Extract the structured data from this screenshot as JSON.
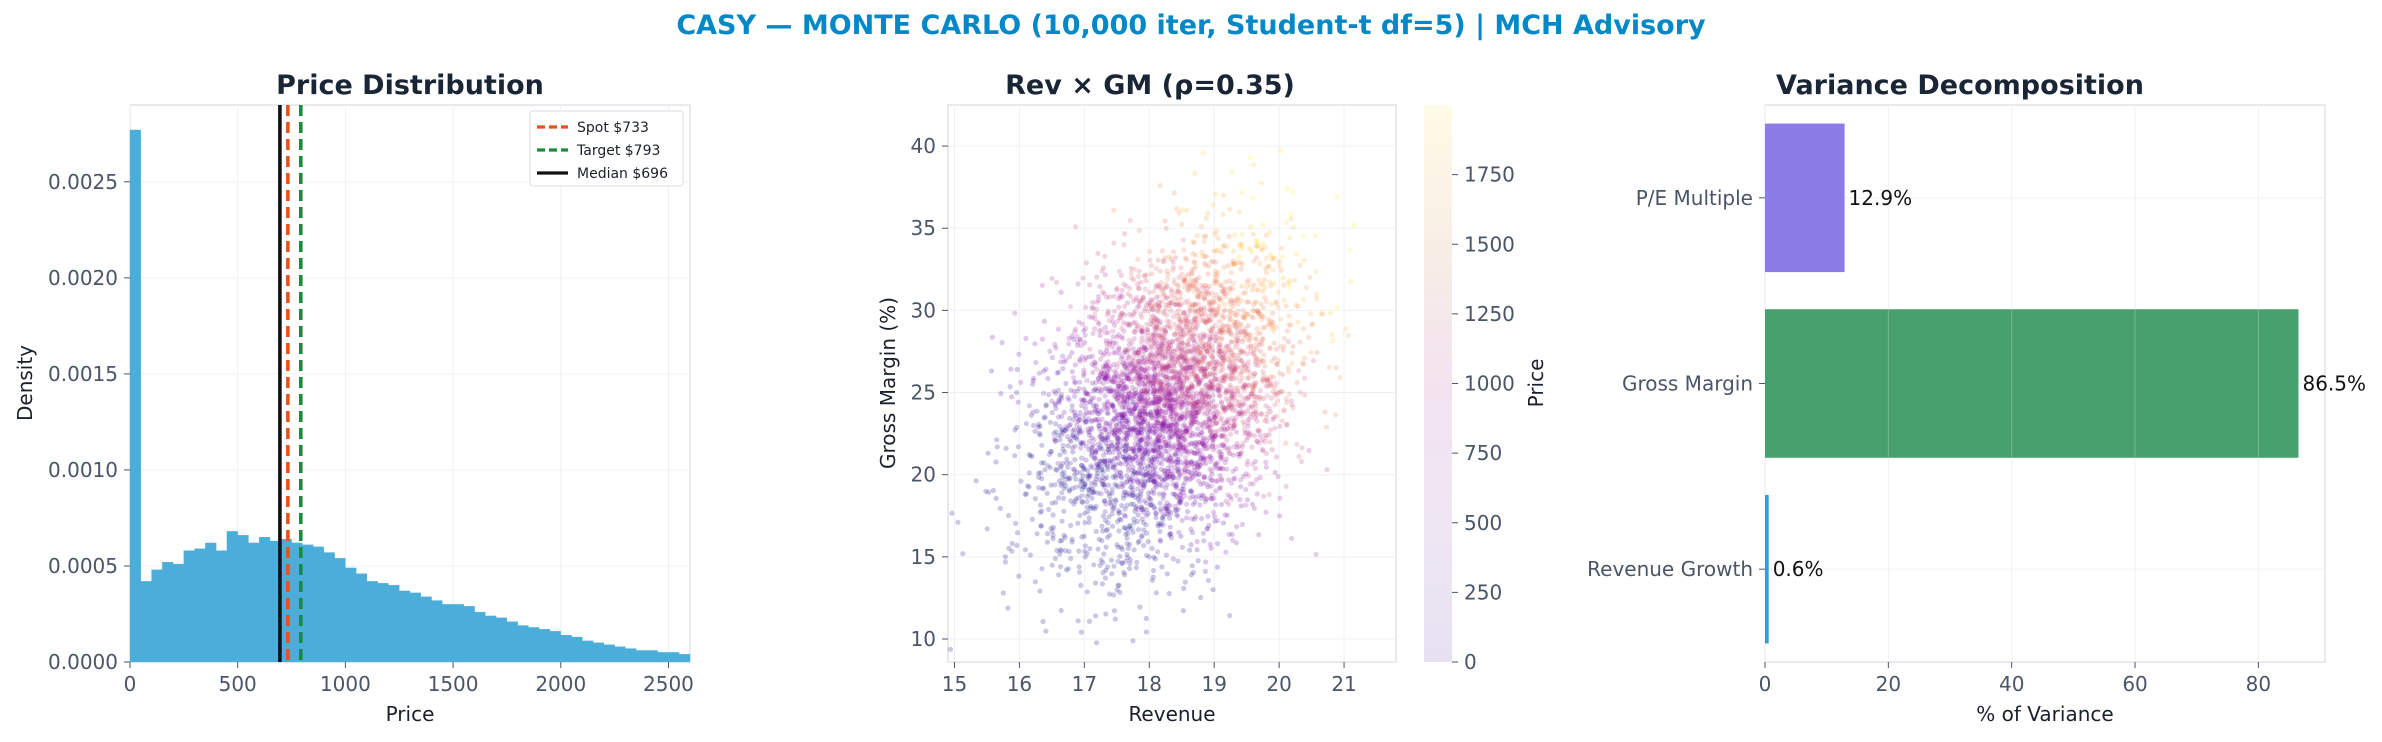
{
  "suptitle": "CASY — MONTE CARLO (10,000 iter, Student-t df=5) | MCH Advisory",
  "colors": {
    "title": "#0288c7",
    "hist": "#4badd9",
    "spot": "#e5531a",
    "target": "#1a8a3c",
    "median": "#111111",
    "pe_bar": "#8b7ce8",
    "gm_bar": "#48a06c",
    "rev_bar": "#3b9ad6"
  },
  "chart_data": [
    {
      "type": "bar",
      "title": "Price Distribution",
      "xlabel": "Price",
      "ylabel": "Density",
      "xlim": [
        0,
        2600
      ],
      "ylim": [
        0,
        0.0029
      ],
      "xticks": [
        "0",
        "500",
        "1000",
        "1500",
        "2000",
        "2500"
      ],
      "yticks": [
        "0.0000",
        "0.0005",
        "0.0010",
        "0.0015",
        "0.0020",
        "0.0025"
      ],
      "bin_width": 50,
      "bin_start": 0,
      "values": [
        0.00277,
        0.00042,
        0.00048,
        0.00052,
        0.00051,
        0.00058,
        0.00059,
        0.00062,
        0.00058,
        0.00068,
        0.00066,
        0.00062,
        0.00065,
        0.00063,
        0.00064,
        0.00062,
        0.00061,
        0.0006,
        0.00057,
        0.00054,
        0.00049,
        0.00046,
        0.00042,
        0.00041,
        0.0004,
        0.00037,
        0.00036,
        0.00034,
        0.00032,
        0.0003,
        0.0003,
        0.00029,
        0.00026,
        0.00024,
        0.00023,
        0.00021,
        0.00019,
        0.00018,
        0.00017,
        0.00016,
        0.00014,
        0.00013,
        0.00011,
        0.0001,
        9e-05,
        8e-05,
        7e-05,
        6e-05,
        6e-05,
        5e-05,
        5e-05,
        4e-05
      ],
      "lines": [
        {
          "name": "Spot $733",
          "x": 733,
          "style": "dashed",
          "color": "#e5531a"
        },
        {
          "name": "Target $793",
          "x": 793,
          "style": "dashed",
          "color": "#1a8a3c"
        },
        {
          "name": "Median $696",
          "x": 696,
          "style": "solid",
          "color": "#111111"
        }
      ],
      "legend": "top-right",
      "grid": true
    },
    {
      "type": "scatter",
      "title": "Rev × GM (ρ=0.35)",
      "xlabel": "Revenue",
      "ylabel": "Gross Margin (%)",
      "xlim": [
        14.9,
        21.8
      ],
      "ylim": [
        8.6,
        42.5
      ],
      "xticks": [
        15,
        16,
        17,
        18,
        19,
        20,
        21
      ],
      "yticks": [
        10,
        15,
        20,
        25,
        30,
        35,
        40
      ],
      "n_points": 4000,
      "x_mean": 18.3,
      "x_sd": 0.95,
      "y_mean": 24.6,
      "y_sd": 4.6,
      "rho": 0.35,
      "colorbar": {
        "label": "Price",
        "min": 0,
        "max": 2000,
        "ticks": [
          0,
          250,
          500,
          750,
          1000,
          1250,
          1500,
          1750
        ],
        "colormap": "plasma"
      },
      "grid": true
    },
    {
      "type": "bar",
      "orientation": "horizontal",
      "title": "Variance Decomposition",
      "xlabel": "% of Variance",
      "categories": [
        "P/E Multiple",
        "Gross Margin",
        "Revenue Growth"
      ],
      "values": [
        12.9,
        86.5,
        0.6
      ],
      "labels": [
        "12.9%",
        "86.5%",
        "0.6%"
      ],
      "xlim": [
        0,
        90.8
      ],
      "xticks": [
        0,
        20,
        40,
        60,
        80
      ],
      "grid": true
    }
  ]
}
